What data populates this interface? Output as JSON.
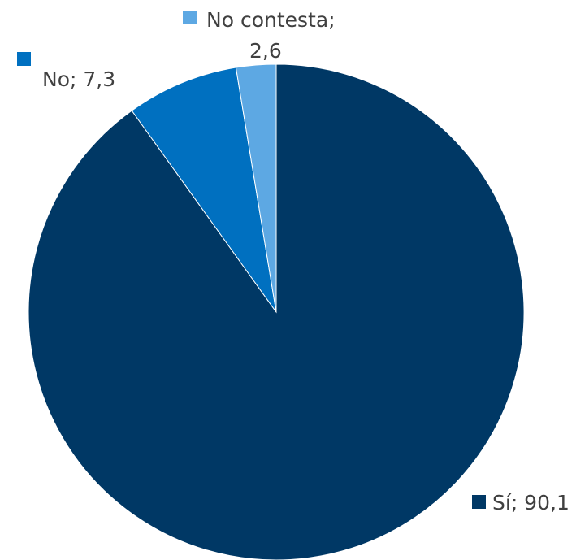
{
  "chart_data": {
    "type": "pie",
    "slices": [
      {
        "label": "Sí",
        "value": 90.1,
        "display_value": "90,1",
        "color": "#003865"
      },
      {
        "label": "No",
        "value": 7.3,
        "display_value": "7,3",
        "color": "#0070C0"
      },
      {
        "label": "No contesta",
        "value": 2.6,
        "display_value": "2,6",
        "color": "#5DA8E3"
      }
    ],
    "start_angle_deg": 0,
    "direction": "clockwise",
    "data_labels": "category; value, with legend key"
  },
  "labels": {
    "si_line1": "Sí; 90,1",
    "no_line1": "No; 7,3",
    "nc_line1": "No contesta;",
    "nc_line2": "2,6"
  }
}
